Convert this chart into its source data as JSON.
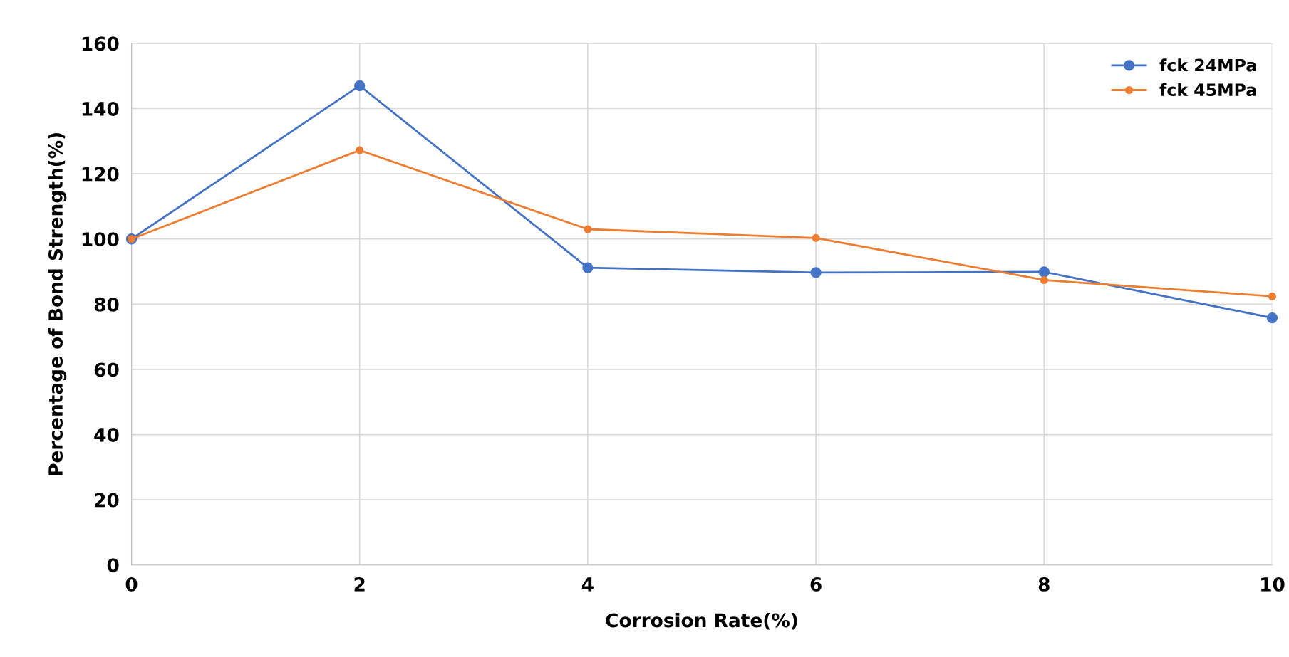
{
  "chart_data": {
    "type": "line",
    "xlabel": "Corrosion Rate(%)",
    "ylabel": "Percentage of Bond Strength(%)",
    "x": [
      0,
      2,
      4,
      6,
      8,
      10
    ],
    "series": [
      {
        "name": "fck 24MPa",
        "color": "#4472c4",
        "values": [
          100,
          147,
          91.2,
          89.7,
          89.9,
          75.8
        ]
      },
      {
        "name": "fck 45MPa",
        "color": "#ed7d31",
        "values": [
          100,
          127.2,
          103.0,
          100.3,
          87.4,
          82.4
        ]
      }
    ],
    "xlim": [
      0,
      10
    ],
    "xticks": [
      0,
      2,
      4,
      6,
      8,
      10
    ],
    "ylim": [
      0,
      160
    ],
    "yticks": [
      0,
      20,
      40,
      60,
      80,
      100,
      120,
      140,
      160
    ],
    "grid": true,
    "legend": "top right",
    "marker": "circle",
    "line_style": "solid"
  }
}
